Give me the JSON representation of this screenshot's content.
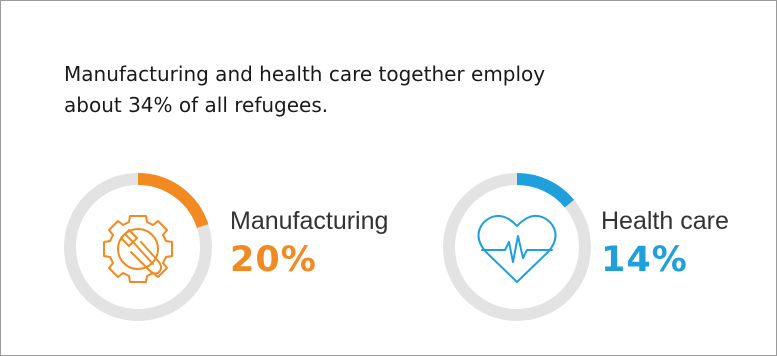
{
  "headline": "Manufacturing and health care together employ about 34% of all refugees.",
  "colors": {
    "track": "#e3e3e3",
    "manufacturing": "#f28a21",
    "health_care": "#1fa0dc"
  },
  "icons": {
    "manufacturing": "gear-wrench-icon",
    "health_care": "heartbeat-icon"
  },
  "chart_data": {
    "type": "pie",
    "categories": [
      "Manufacturing",
      "Health care"
    ],
    "values": [
      20,
      14
    ],
    "value_labels": [
      "20%",
      "14%"
    ],
    "unit": "%"
  }
}
